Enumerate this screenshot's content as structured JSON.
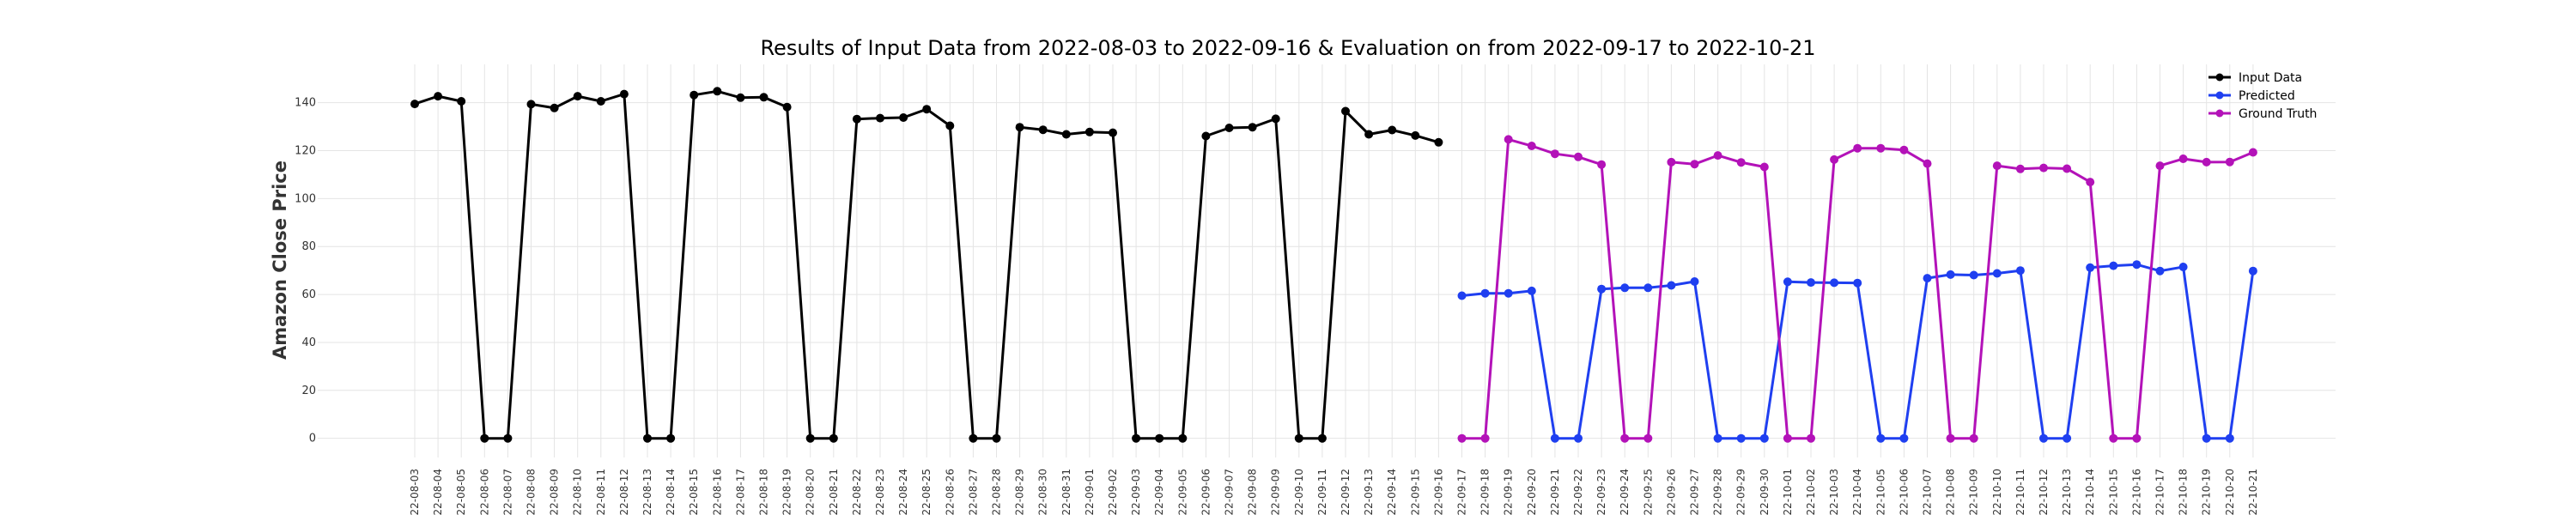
{
  "chart_data": {
    "type": "line",
    "title": "Results of Input Data from 2022-08-03 to 2022-09-16 & Evaluation on from 2022-09-17 to 2022-10-21",
    "xlabel": "",
    "ylabel": "Amazon Close Price",
    "ylim": [
      -8,
      156
    ],
    "yticks": [
      0,
      20,
      40,
      60,
      80,
      100,
      120,
      140
    ],
    "grid": true,
    "legend_position": "top-right",
    "input_dates": [
      "2022-08-03",
      "2022-08-04",
      "2022-08-05",
      "2022-08-06",
      "2022-08-07",
      "2022-08-08",
      "2022-08-09",
      "2022-08-10",
      "2022-08-11",
      "2022-08-12",
      "2022-08-13",
      "2022-08-14",
      "2022-08-15",
      "2022-08-16",
      "2022-08-17",
      "2022-08-18",
      "2022-08-19",
      "2022-08-20",
      "2022-08-21",
      "2022-08-22",
      "2022-08-23",
      "2022-08-24",
      "2022-08-25",
      "2022-08-26",
      "2022-08-27",
      "2022-08-28",
      "2022-08-29",
      "2022-08-30",
      "2022-08-31",
      "2022-09-01",
      "2022-09-02",
      "2022-09-03",
      "2022-09-04",
      "2022-09-05",
      "2022-09-06",
      "2022-09-07",
      "2022-09-08",
      "2022-09-09",
      "2022-09-10",
      "2022-09-11",
      "2022-09-12",
      "2022-09-13",
      "2022-09-14",
      "2022-09-15",
      "2022-09-16"
    ],
    "eval_dates": [
      "2022-09-17",
      "2022-09-18",
      "2022-09-19",
      "2022-09-20",
      "2022-09-21",
      "2022-09-22",
      "2022-09-23",
      "2022-09-24",
      "2022-09-25",
      "2022-09-26",
      "2022-09-27",
      "2022-09-28",
      "2022-09-29",
      "2022-09-30",
      "2022-10-01",
      "2022-10-02",
      "2022-10-03",
      "2022-10-04",
      "2022-10-05",
      "2022-10-06",
      "2022-10-07",
      "2022-10-08",
      "2022-10-09",
      "2022-10-10",
      "2022-10-11",
      "2022-10-12",
      "2022-10-13",
      "2022-10-14",
      "2022-10-15",
      "2022-10-16",
      "2022-10-17",
      "2022-10-18",
      "2022-10-19",
      "2022-10-20",
      "2022-10-21"
    ],
    "xtick_labels": [
      "2022-08-03",
      "2022-08-04",
      "2022-08-05",
      "2022-08-06",
      "2022-08-07",
      "2022-08-08",
      "2022-08-09",
      "2022-08-10",
      "2022-08-11",
      "2022-08-12",
      "2022-08-13",
      "2022-08-14",
      "2022-08-15",
      "2022-08-16",
      "2022-08-17",
      "2022-08-18",
      "2022-08-19",
      "2022-08-20",
      "2022-08-21",
      "2022-08-22",
      "2022-08-23",
      "2022-08-24",
      "2022-08-25",
      "2022-08-26",
      "2022-08-27",
      "2022-08-28",
      "2022-08-29",
      "2022-08-30",
      "2022-08-31",
      "2022-09-01",
      "2022-09-02",
      "2022-09-03",
      "2022-09-04",
      "2022-09-05",
      "2022-09-06",
      "2022-09-07",
      "2022-09-08",
      "2022-09-09",
      "2022-09-10",
      "2022-09-11",
      "2022-09-12",
      "2022-09-13",
      "2022-09-14",
      "2022-09-15",
      "2022-09-16",
      "2022-09-17",
      "2022-09-18",
      "2022-09-19",
      "2022-09-20",
      "2022-09-21",
      "2022-09-22",
      "2022-09-23",
      "2022-09-24",
      "2022-09-25",
      "2022-09-26",
      "2022-09-27",
      "2022-09-28",
      "2022-09-29",
      "2022-09-30",
      "2022-10-01",
      "2022-10-02",
      "2022-10-03",
      "2022-10-04",
      "2022-10-05",
      "2022-10-06",
      "2022-10-07",
      "2022-10-08",
      "2022-10-09",
      "2022-10-10",
      "2022-10-11",
      "2022-10-12",
      "2022-10-13",
      "2022-10-14",
      "2022-10-15",
      "2022-10-16",
      "2022-10-17",
      "2022-10-18",
      "2022-10-19",
      "2022-10-20",
      "2022-10-21"
    ],
    "series": [
      {
        "name": "Input Data",
        "color": "#000000",
        "x": "input_dates",
        "values": [
          139.5,
          142.7,
          140.6,
          0,
          0,
          139.4,
          137.8,
          142.7,
          140.6,
          143.6,
          0,
          0,
          143.2,
          144.8,
          142.1,
          142.3,
          138.2,
          0,
          0,
          133.2,
          133.6,
          133.8,
          137.3,
          130.4,
          0,
          0,
          129.8,
          128.7,
          126.8,
          127.8,
          127.5,
          0,
          0,
          0,
          126.1,
          129.5,
          129.8,
          133.3,
          0,
          0,
          136.5,
          126.8,
          128.6,
          126.3,
          123.5
        ]
      },
      {
        "name": "Predicted",
        "color": "#1f3ff0",
        "x": "eval_dates",
        "values": [
          59.5,
          60.5,
          60.5,
          61.5,
          0,
          0,
          62.3,
          62.8,
          62.8,
          63.8,
          65.4,
          0,
          0,
          0,
          65.3,
          65.0,
          64.9,
          64.8,
          0,
          0,
          66.8,
          68.3,
          68.1,
          68.8,
          70.0,
          0,
          0,
          71.2,
          72.0,
          72.5,
          69.8,
          71.5,
          0,
          0,
          69.8
        ]
      },
      {
        "name": "Ground Truth",
        "color": "#b312b8",
        "x": "eval_dates",
        "values": [
          0,
          0,
          124.7,
          122.0,
          118.7,
          117.4,
          114.2,
          0,
          0,
          115.2,
          114.4,
          118.0,
          115.1,
          113.2,
          0,
          0,
          116.3,
          121.0,
          121.0,
          120.3,
          114.6,
          0,
          0,
          113.7,
          112.4,
          112.8,
          112.5,
          106.9,
          0,
          0,
          113.7,
          116.6,
          115.2,
          115.3,
          119.3
        ]
      }
    ]
  }
}
